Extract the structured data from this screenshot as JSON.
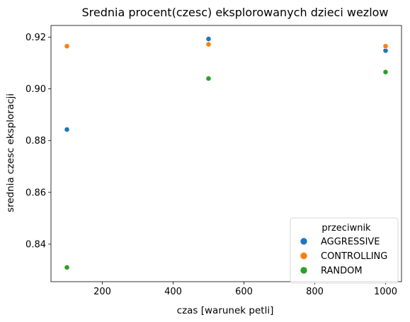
{
  "chart_data": {
    "type": "scatter",
    "title": "Srednia procent(czesc) eksplorowanych dzieci wezlow",
    "xlabel": "czas [warunek petli]",
    "ylabel": "srednia czesc eksploracji",
    "xlim": [
      55,
      1045
    ],
    "ylim": [
      0.8255,
      0.9245
    ],
    "xticks": [
      200,
      400,
      600,
      800,
      1000
    ],
    "yticks": [
      0.84,
      0.86,
      0.88,
      0.9,
      0.92
    ],
    "xtick_labels": [
      "200",
      "400",
      "600",
      "800",
      "1000"
    ],
    "ytick_labels": [
      "0.84",
      "0.86",
      "0.88",
      "0.90",
      "0.92"
    ],
    "legend": {
      "title": "przeciwnik",
      "position": "lower right"
    },
    "series": [
      {
        "name": "AGGRESSIVE",
        "color": "#1f77b4",
        "x": [
          100,
          500,
          1000
        ],
        "y": [
          0.8843,
          0.9193,
          0.9148
        ]
      },
      {
        "name": "CONTROLLING",
        "color": "#ff7f0e",
        "x": [
          100,
          500,
          1000
        ],
        "y": [
          0.9165,
          0.9172,
          0.9165
        ]
      },
      {
        "name": "RANDOM",
        "color": "#2ca02c",
        "x": [
          100,
          500,
          1000
        ],
        "y": [
          0.831,
          0.904,
          0.9065
        ]
      }
    ]
  }
}
